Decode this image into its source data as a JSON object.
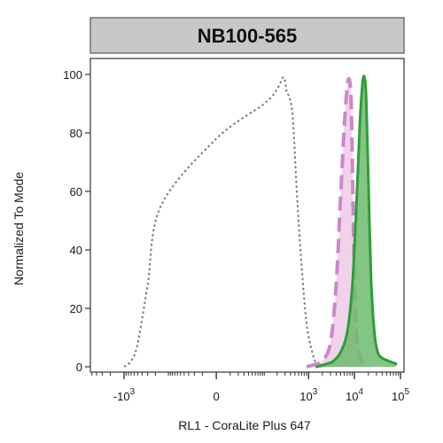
{
  "chart_data": {
    "type": "area",
    "title": "NB100-565",
    "xlabel": "RL1 - CoraLite Plus 647",
    "ylabel": "Normalized To Mode",
    "x_scale": "biexponential",
    "xlim": [
      -2000,
      100000
    ],
    "ylim": [
      0,
      100
    ],
    "grid": false,
    "y_ticks": [
      {
        "value": 0,
        "label": "0"
      },
      {
        "value": 20,
        "label": "20"
      },
      {
        "value": 40,
        "label": "40"
      },
      {
        "value": 60,
        "label": "60"
      },
      {
        "value": 80,
        "label": "80"
      },
      {
        "value": 100,
        "label": "100"
      }
    ],
    "x_ticks": [
      {
        "value": -1000,
        "base": "-10",
        "exp": "3"
      },
      {
        "value": 0,
        "base": "0",
        "exp": ""
      },
      {
        "value": 1000,
        "base": "10",
        "exp": "3"
      },
      {
        "value": 10000,
        "base": "10",
        "exp": "4"
      },
      {
        "value": 100000,
        "base": "10",
        "exp": "5"
      }
    ],
    "series": [
      {
        "style": "dotted",
        "color": "#7a7a7a",
        "fill": "none",
        "x": [
          -1000,
          -700,
          -500,
          -300,
          -150,
          0,
          100,
          200,
          280,
          330,
          380,
          450,
          550,
          700,
          900,
          1200,
          1500,
          2000
        ],
        "y": [
          0,
          2,
          8,
          28,
          55,
          78,
          90,
          95,
          99,
          94,
          92,
          85,
          60,
          35,
          15,
          5,
          1,
          0
        ]
      },
      {
        "style": "dashed",
        "color": "#cc88c8",
        "fill": "#f0cde8",
        "x": [
          900,
          1500,
          2000,
          3000,
          4000,
          5000,
          6000,
          7000,
          7800,
          8500,
          9200,
          10000,
          11000,
          13000,
          16000,
          20000
        ],
        "y": [
          0,
          1,
          2,
          8,
          28,
          58,
          82,
          96,
          98,
          90,
          60,
          30,
          12,
          4,
          1,
          0
        ]
      },
      {
        "style": "solid",
        "color": "#2e9e3a",
        "fill": "#6dbb6d",
        "x": [
          1500,
          2500,
          3500,
          5000,
          7000,
          9000,
          11000,
          13000,
          15000,
          16500,
          18000,
          20000,
          23000,
          27000,
          32000,
          40000,
          55000,
          80000
        ],
        "y": [
          0,
          1,
          2,
          5,
          12,
          28,
          55,
          82,
          97,
          99,
          92,
          65,
          30,
          12,
          5,
          3,
          2,
          1
        ]
      }
    ]
  }
}
